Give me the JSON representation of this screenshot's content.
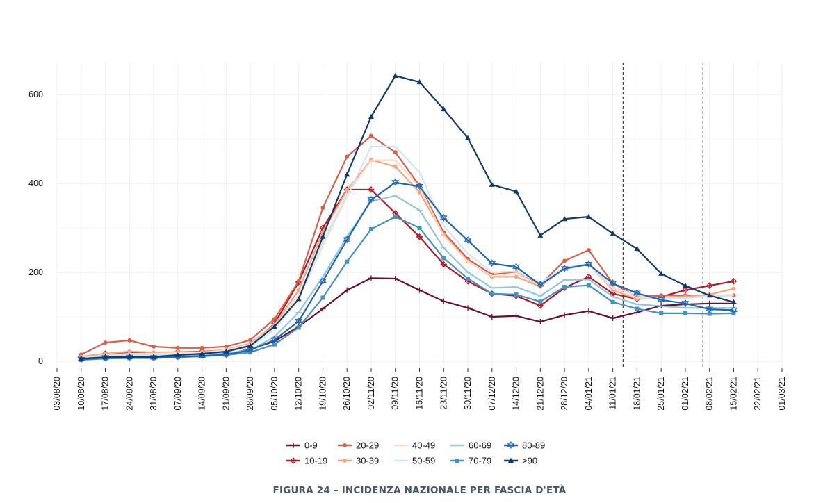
{
  "figure_caption": "FIGURA 24 – INCIDENZA NAZIONALE PER FASCIA D'ETÀ",
  "chart_data": {
    "type": "line",
    "title": "",
    "xlabel": "",
    "ylabel": "",
    "ylim": [
      0,
      660
    ],
    "yticks": [
      0,
      200,
      400,
      600
    ],
    "x_axis_labels": [
      "03/08/20",
      "10/08/20",
      "17/08/20",
      "24/08/20",
      "31/08/20",
      "07/09/20",
      "14/09/20",
      "21/09/20",
      "28/09/20",
      "05/10/20",
      "12/10/20",
      "19/10/20",
      "26/10/20",
      "02/11/20",
      "09/11/20",
      "16/11/20",
      "23/11/20",
      "30/11/20",
      "07/12/20",
      "14/12/20",
      "21/12/20",
      "28/12/20",
      "04/01/21",
      "11/01/21",
      "18/01/21",
      "25/01/21",
      "01/02/21",
      "08/02/21",
      "15/02/21",
      "22/02/21",
      "01/03/21"
    ],
    "x": [
      "10/08/20",
      "17/08/20",
      "24/08/20",
      "31/08/20",
      "07/09/20",
      "14/09/20",
      "21/09/20",
      "28/09/20",
      "05/10/20",
      "12/10/20",
      "19/10/20",
      "26/10/20",
      "02/11/20",
      "09/11/20",
      "16/11/20",
      "23/11/20",
      "30/11/20",
      "07/12/20",
      "14/12/20",
      "21/12/20",
      "28/12/20",
      "04/01/21",
      "11/01/21",
      "18/01/21",
      "25/01/21",
      "01/02/21",
      "08/02/21",
      "15/02/21"
    ],
    "vertical_lines": [
      {
        "x": "14/01/21",
        "style": "dashed",
        "color": "#444444"
      },
      {
        "x": "06/02/21",
        "style": "dashed",
        "color": "#bbbbbb"
      }
    ],
    "grid": true,
    "legend_position": "bottom",
    "series": [
      {
        "name": "0-9",
        "color": "#6b0d2e",
        "marker": "plus",
        "values": [
          5,
          7,
          9,
          10,
          12,
          13,
          16,
          27,
          45,
          78,
          118,
          160,
          187,
          186,
          160,
          135,
          120,
          100,
          102,
          89,
          104,
          113,
          97,
          110,
          125,
          128,
          130,
          130
        ]
      },
      {
        "name": "10-19",
        "color": "#b2182b",
        "marker": "cross-diamond",
        "values": [
          10,
          17,
          19,
          17,
          21,
          22,
          25,
          32,
          85,
          178,
          300,
          386,
          386,
          333,
          280,
          218,
          180,
          152,
          147,
          125,
          165,
          190,
          152,
          140,
          145,
          160,
          170,
          180
        ]
      },
      {
        "name": "20-29",
        "color": "#d6604d",
        "marker": "circle",
        "values": [
          15,
          42,
          47,
          33,
          30,
          30,
          33,
          48,
          95,
          180,
          345,
          460,
          507,
          470,
          395,
          290,
          230,
          195,
          200,
          172,
          226,
          250,
          175,
          145,
          148,
          148,
          148,
          148
        ]
      },
      {
        "name": "30-39",
        "color": "#f4a582",
        "marker": "circle",
        "values": [
          10,
          17,
          22,
          20,
          21,
          21,
          26,
          40,
          82,
          160,
          290,
          385,
          453,
          438,
          380,
          285,
          225,
          190,
          190,
          168,
          210,
          218,
          160,
          140,
          143,
          145,
          150,
          163
        ]
      },
      {
        "name": "40-49",
        "color": "#fddbc7",
        "marker": "none",
        "values": [
          8,
          14,
          17,
          17,
          19,
          19,
          25,
          38,
          78,
          150,
          270,
          375,
          452,
          452,
          392,
          282,
          224,
          192,
          198,
          170,
          210,
          218,
          163,
          143,
          142,
          142,
          147,
          150
        ]
      },
      {
        "name": "50-59",
        "color": "#d1e5f0",
        "marker": "none",
        "values": [
          6,
          11,
          14,
          14,
          16,
          16,
          21,
          33,
          70,
          140,
          260,
          370,
          483,
          483,
          425,
          305,
          242,
          200,
          202,
          176,
          211,
          219,
          167,
          148,
          142,
          142,
          146,
          148
        ]
      },
      {
        "name": "60-69",
        "color": "#92c5de",
        "marker": "line",
        "values": [
          5,
          9,
          11,
          10,
          13,
          14,
          18,
          25,
          55,
          110,
          190,
          280,
          360,
          372,
          340,
          255,
          200,
          165,
          167,
          147,
          183,
          184,
          145,
          128,
          124,
          120,
          120,
          120
        ]
      },
      {
        "name": "70-79",
        "color": "#4393c3",
        "marker": "square",
        "values": [
          3,
          6,
          7,
          7,
          9,
          11,
          14,
          20,
          38,
          76,
          143,
          224,
          297,
          325,
          300,
          232,
          186,
          152,
          150,
          134,
          167,
          171,
          133,
          118,
          108,
          108,
          107,
          108
        ]
      },
      {
        "name": "80-89",
        "color": "#2166ac",
        "marker": "triangle-down",
        "values": [
          4,
          8,
          9,
          8,
          10,
          12,
          15,
          25,
          48,
          90,
          180,
          273,
          363,
          402,
          393,
          322,
          272,
          220,
          212,
          172,
          208,
          218,
          175,
          153,
          138,
          130,
          117,
          115
        ]
      },
      {
        "name": ">90",
        "color": "#133a68",
        "marker": "triangle-up",
        "values": [
          6,
          9,
          10,
          10,
          14,
          17,
          22,
          35,
          78,
          140,
          280,
          420,
          550,
          642,
          628,
          567,
          502,
          397,
          382,
          283,
          320,
          325,
          287,
          253,
          197,
          170,
          148,
          133
        ]
      }
    ]
  }
}
